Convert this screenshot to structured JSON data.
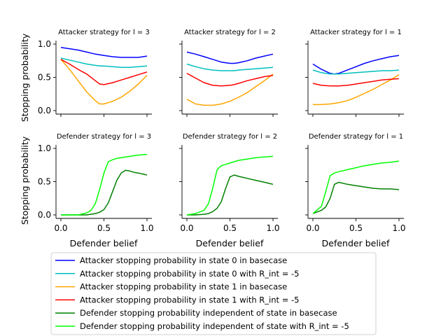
{
  "chart_data": {
    "type": "line",
    "ylabel": "Stopping probability",
    "xlabel": "Defender belief",
    "xlim": [
      0,
      1
    ],
    "ylim": [
      0,
      1
    ],
    "xticks": [
      "0.0",
      "0.5",
      "1.0"
    ],
    "yticks": [
      "0.0",
      "0.5",
      "1.0"
    ],
    "legend": {
      "placement": "bottom-center",
      "entries": [
        {
          "key": "a0_base",
          "label": "Attacker stopping probability in state 0 in basecase",
          "color": "#0000ff"
        },
        {
          "key": "a0_rint",
          "label": "Attacker stopping probability in state 0 with R_int = -5",
          "color": "#00bfbf"
        },
        {
          "key": "a1_base",
          "label": "Attacker stopping probability in state 1 in basecase",
          "color": "#ffa500"
        },
        {
          "key": "a1_rint",
          "label": "Attacker stopping probability in state 1 with R_int = -5",
          "color": "#ff0000"
        },
        {
          "key": "d_base",
          "label": "Defender stopping probability independent of state in basecase",
          "color": "#008000"
        },
        {
          "key": "d_rint",
          "label": "Defender stopping probability independent of state with R_int = -5",
          "color": "#00ff00"
        }
      ]
    },
    "panels": [
      {
        "title": "Attacker strategy for l = 3",
        "x": [
          0,
          0.1,
          0.2,
          0.3,
          0.4,
          0.45,
          0.5,
          0.6,
          0.7,
          0.8,
          0.9,
          1.0
        ],
        "series": [
          {
            "key": "a0_base",
            "values": [
              0.95,
              0.93,
              0.91,
              0.88,
              0.85,
              0.84,
              0.83,
              0.81,
              0.8,
              0.8,
              0.8,
              0.82
            ]
          },
          {
            "key": "a0_rint",
            "values": [
              0.79,
              0.76,
              0.73,
              0.7,
              0.68,
              0.67,
              0.67,
              0.66,
              0.65,
              0.65,
              0.66,
              0.67
            ]
          },
          {
            "key": "a1_base",
            "values": [
              0.77,
              0.62,
              0.45,
              0.28,
              0.15,
              0.1,
              0.1,
              0.14,
              0.2,
              0.29,
              0.4,
              0.53
            ]
          },
          {
            "key": "a1_rint",
            "values": [
              0.77,
              0.7,
              0.62,
              0.55,
              0.45,
              0.4,
              0.39,
              0.42,
              0.46,
              0.5,
              0.54,
              0.58
            ]
          }
        ]
      },
      {
        "title": "Attacker strategy for l = 2",
        "x": [
          0,
          0.1,
          0.2,
          0.3,
          0.4,
          0.5,
          0.55,
          0.6,
          0.7,
          0.8,
          0.9,
          1.0
        ],
        "series": [
          {
            "key": "a0_base",
            "values": [
              0.88,
              0.85,
              0.81,
              0.77,
              0.73,
              0.71,
              0.71,
              0.72,
              0.75,
              0.79,
              0.82,
              0.85
            ]
          },
          {
            "key": "a0_rint",
            "values": [
              0.7,
              0.66,
              0.63,
              0.61,
              0.6,
              0.6,
              0.6,
              0.61,
              0.62,
              0.63,
              0.64,
              0.65
            ]
          },
          {
            "key": "a1_base",
            "values": [
              0.17,
              0.1,
              0.08,
              0.08,
              0.1,
              0.14,
              0.17,
              0.2,
              0.27,
              0.36,
              0.45,
              0.55
            ]
          },
          {
            "key": "a1_rint",
            "values": [
              0.56,
              0.49,
              0.42,
              0.38,
              0.37,
              0.38,
              0.39,
              0.41,
              0.45,
              0.48,
              0.51,
              0.53
            ]
          }
        ]
      },
      {
        "title": "Attacker strategy for l = 1",
        "x": [
          0,
          0.1,
          0.2,
          0.25,
          0.3,
          0.4,
          0.5,
          0.6,
          0.7,
          0.8,
          0.9,
          1.0
        ],
        "series": [
          {
            "key": "a0_base",
            "values": [
              0.7,
              0.62,
              0.56,
              0.55,
              0.56,
              0.61,
              0.66,
              0.71,
              0.75,
              0.78,
              0.81,
              0.83
            ]
          },
          {
            "key": "a0_rint",
            "values": [
              0.61,
              0.57,
              0.55,
              0.55,
              0.55,
              0.56,
              0.57,
              0.58,
              0.59,
              0.6,
              0.6,
              0.61
            ]
          },
          {
            "key": "a1_base",
            "values": [
              0.09,
              0.09,
              0.1,
              0.11,
              0.12,
              0.15,
              0.2,
              0.26,
              0.32,
              0.39,
              0.46,
              0.54
            ]
          },
          {
            "key": "a1_rint",
            "values": [
              0.41,
              0.38,
              0.37,
              0.37,
              0.37,
              0.38,
              0.4,
              0.42,
              0.44,
              0.46,
              0.47,
              0.48
            ]
          }
        ]
      },
      {
        "title": "Defender strategy for l = 3",
        "x": [
          0,
          0.2,
          0.3,
          0.35,
          0.4,
          0.45,
          0.5,
          0.55,
          0.6,
          0.65,
          0.7,
          0.75,
          0.8,
          0.85,
          0.9,
          1.0
        ],
        "series": [
          {
            "key": "d_base",
            "values": [
              0.0,
              0.0,
              0.0,
              0.01,
              0.02,
              0.04,
              0.08,
              0.18,
              0.35,
              0.52,
              0.63,
              0.67,
              0.66,
              0.64,
              0.63,
              0.6
            ]
          },
          {
            "key": "d_rint",
            "values": [
              0.0,
              0.0,
              0.03,
              0.07,
              0.17,
              0.38,
              0.63,
              0.8,
              0.83,
              0.85,
              0.86,
              0.87,
              0.88,
              0.89,
              0.9,
              0.91
            ]
          }
        ]
      },
      {
        "title": "Defender strategy for l = 2",
        "x": [
          0,
          0.1,
          0.2,
          0.25,
          0.3,
          0.35,
          0.4,
          0.45,
          0.5,
          0.55,
          0.6,
          0.7,
          0.8,
          0.9,
          1.0
        ],
        "series": [
          {
            "key": "d_base",
            "values": [
              0.0,
              0.0,
              0.01,
              0.02,
              0.05,
              0.1,
              0.2,
              0.4,
              0.57,
              0.6,
              0.58,
              0.55,
              0.52,
              0.49,
              0.46
            ]
          },
          {
            "key": "d_rint",
            "values": [
              0.0,
              0.02,
              0.07,
              0.17,
              0.4,
              0.68,
              0.74,
              0.76,
              0.78,
              0.8,
              0.82,
              0.84,
              0.86,
              0.87,
              0.88
            ]
          }
        ]
      },
      {
        "title": "Defender strategy for l = 1",
        "x": [
          0,
          0.1,
          0.15,
          0.2,
          0.25,
          0.3,
          0.4,
          0.5,
          0.6,
          0.7,
          0.8,
          0.9,
          1.0
        ],
        "series": [
          {
            "key": "d_base",
            "values": [
              0.02,
              0.07,
              0.12,
              0.25,
              0.46,
              0.49,
              0.46,
              0.44,
              0.42,
              0.4,
              0.39,
              0.39,
              0.38
            ]
          },
          {
            "key": "d_rint",
            "values": [
              0.02,
              0.13,
              0.35,
              0.59,
              0.63,
              0.65,
              0.68,
              0.71,
              0.74,
              0.76,
              0.78,
              0.79,
              0.81
            ]
          }
        ]
      }
    ]
  }
}
